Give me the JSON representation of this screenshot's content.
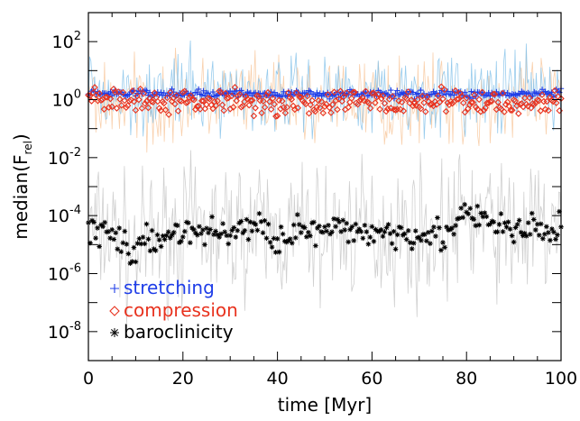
{
  "chart_data": {
    "type": "scatter",
    "title": "",
    "xlabel": "time [Myr]",
    "ylabel": {
      "main": "median(F",
      "sub": "rel",
      "close": ")"
    },
    "xlim": [
      0,
      100
    ],
    "ylim": [
      1e-09,
      1000.0
    ],
    "yscale": "log",
    "grid": false,
    "legend_position": "bottom-left",
    "x_ticks": [
      0,
      20,
      40,
      60,
      80,
      100
    ],
    "x_tick_labels": [
      "0",
      "20",
      "40",
      "60",
      "80",
      "100"
    ],
    "y_ticks": [
      1e-08,
      1e-06,
      0.0001,
      0.01,
      1,
      100
    ],
    "y_tick_labels": [
      {
        "base": "10",
        "exp": "-8"
      },
      {
        "base": "10",
        "exp": "-6"
      },
      {
        "base": "10",
        "exp": "-4"
      },
      {
        "base": "10",
        "exp": "-2"
      },
      {
        "base": "10",
        "exp": "0"
      },
      {
        "base": "10",
        "exp": "2"
      }
    ],
    "series": [
      {
        "name": "stretching",
        "marker": "+",
        "color": "#1f3ee8",
        "spread_color": "#87c3ea",
        "x": [
          0,
          5,
          10,
          15,
          20,
          25,
          30,
          35,
          40,
          45,
          50,
          55,
          60,
          65,
          70,
          75,
          80,
          85,
          90,
          95,
          100
        ],
        "y": [
          1.8,
          1.6,
          1.7,
          1.5,
          1.6,
          1.5,
          1.7,
          1.6,
          1.5,
          1.6,
          1.5,
          1.7,
          1.6,
          1.5,
          1.6,
          1.7,
          1.5,
          1.6,
          1.5,
          1.6,
          1.7
        ]
      },
      {
        "name": "compression",
        "marker": "diamond",
        "color": "#e8321e",
        "spread_color": "#f8c9a0",
        "x": [
          0,
          5,
          10,
          15,
          20,
          25,
          30,
          35,
          40,
          45,
          50,
          55,
          60,
          65,
          70,
          75,
          80,
          85,
          90,
          95,
          100
        ],
        "y": [
          1.2,
          0.8,
          0.9,
          0.7,
          0.9,
          0.8,
          1.1,
          0.9,
          0.7,
          0.8,
          0.7,
          0.9,
          1.0,
          0.7,
          0.8,
          1.0,
          0.7,
          0.8,
          0.7,
          0.8,
          0.9
        ]
      },
      {
        "name": "baroclinicity",
        "marker": "asterisk",
        "color": "#000000",
        "spread_color": "#c8c8c8",
        "x": [
          0,
          5,
          10,
          15,
          20,
          25,
          30,
          35,
          40,
          45,
          50,
          55,
          60,
          65,
          70,
          75,
          80,
          85,
          90,
          95,
          100
        ],
        "y": [
          3e-05,
          2.5e-05,
          5e-06,
          2e-05,
          3e-05,
          2.5e-05,
          3e-05,
          4e-05,
          2e-05,
          3e-05,
          2.5e-05,
          3e-05,
          3e-05,
          2.5e-05,
          3e-05,
          2e-05,
          0.0001,
          5e-05,
          3e-05,
          3e-05,
          3e-05
        ]
      }
    ]
  }
}
